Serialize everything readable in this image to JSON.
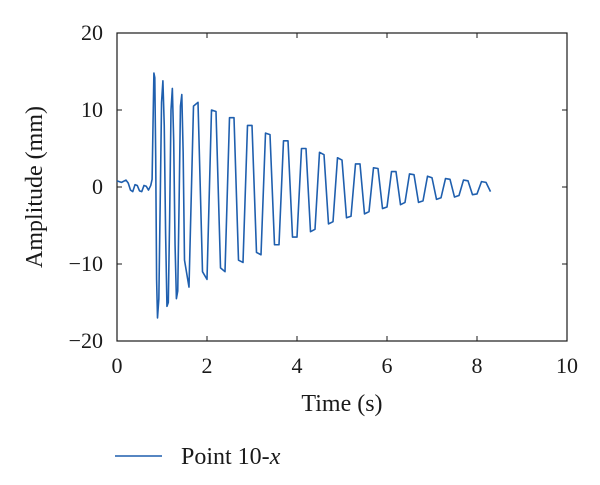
{
  "chart_data": {
    "type": "line",
    "title": "",
    "xlabel": "Time (s)",
    "ylabel": "Amplitude (mm)",
    "xlim": [
      0,
      10
    ],
    "ylim": [
      -20,
      20
    ],
    "xticks": [
      0,
      2,
      4,
      6,
      8,
      10
    ],
    "yticks": [
      -20,
      -10,
      0,
      10,
      20
    ],
    "xtick_labels": [
      "0",
      "2",
      "4",
      "6",
      "8",
      "10"
    ],
    "ytick_labels": [
      "−20",
      "−10",
      "0",
      "10",
      "20"
    ],
    "grid": false,
    "legend_position": "bottom",
    "series": [
      {
        "name": "Point 10-x",
        "name_prefix": "Point 10-",
        "name_italic": "x",
        "color": "#1f5fae",
        "x": [
          0.0,
          0.1,
          0.2,
          0.25,
          0.3,
          0.35,
          0.4,
          0.45,
          0.5,
          0.55,
          0.6,
          0.65,
          0.7,
          0.75,
          0.78,
          0.8,
          0.82,
          0.84,
          0.86,
          0.88,
          0.9,
          0.93,
          0.96,
          0.99,
          1.02,
          1.05,
          1.08,
          1.11,
          1.14,
          1.17,
          1.2,
          1.23,
          1.26,
          1.29,
          1.32,
          1.35,
          1.38,
          1.41,
          1.44,
          1.47,
          1.5,
          1.6,
          1.7,
          1.8,
          1.9,
          2.0,
          2.1,
          2.2,
          2.3,
          2.4,
          2.5,
          2.6,
          2.7,
          2.8,
          2.9,
          3.0,
          3.1,
          3.2,
          3.3,
          3.4,
          3.5,
          3.6,
          3.7,
          3.8,
          3.9,
          4.0,
          4.1,
          4.2,
          4.3,
          4.4,
          4.5,
          4.6,
          4.7,
          4.8,
          4.9,
          5.0,
          5.1,
          5.2,
          5.3,
          5.4,
          5.5,
          5.6,
          5.7,
          5.8,
          5.9,
          6.0,
          6.1,
          6.2,
          6.3,
          6.4,
          6.5,
          6.6,
          6.7,
          6.8,
          6.9,
          7.0,
          7.1,
          7.2,
          7.3,
          7.4,
          7.5,
          7.6,
          7.7,
          7.8,
          7.9,
          8.0,
          8.1,
          8.2,
          8.3
        ],
        "y": [
          0.8,
          0.6,
          0.9,
          0.5,
          -0.4,
          -0.6,
          0.3,
          0.2,
          -0.5,
          -0.6,
          0.2,
          0.1,
          -0.4,
          0.2,
          1.0,
          8.0,
          14.8,
          14.2,
          4.0,
          -12.0,
          -17.0,
          -14.5,
          -2.0,
          11.0,
          13.8,
          8.0,
          -6.0,
          -15.5,
          -15.0,
          -4.0,
          10.0,
          12.8,
          6.0,
          -7.5,
          -14.5,
          -13.5,
          -2.0,
          10.5,
          12.0,
          4.5,
          -9.5,
          -13.0,
          10.5,
          11.0,
          -11.0,
          -12.0,
          10.0,
          9.8,
          -10.5,
          -11.0,
          9.0,
          9.0,
          -9.5,
          -9.8,
          8.0,
          8.0,
          -8.5,
          -8.8,
          7.0,
          6.8,
          -7.5,
          -7.5,
          6.0,
          6.0,
          -6.5,
          -6.5,
          5.0,
          5.0,
          -5.8,
          -5.5,
          4.5,
          4.2,
          -4.8,
          -4.5,
          3.8,
          3.5,
          -4.0,
          -3.8,
          3.0,
          3.0,
          -3.5,
          -3.2,
          2.5,
          2.4,
          -2.8,
          -2.6,
          2.0,
          2.0,
          -2.3,
          -2.0,
          1.7,
          1.6,
          -2.0,
          -1.8,
          1.4,
          1.2,
          -1.6,
          -1.4,
          1.1,
          1.0,
          -1.3,
          -1.1,
          0.9,
          0.8,
          -1.0,
          -0.9,
          0.7,
          0.6,
          -0.6
        ]
      }
    ]
  }
}
